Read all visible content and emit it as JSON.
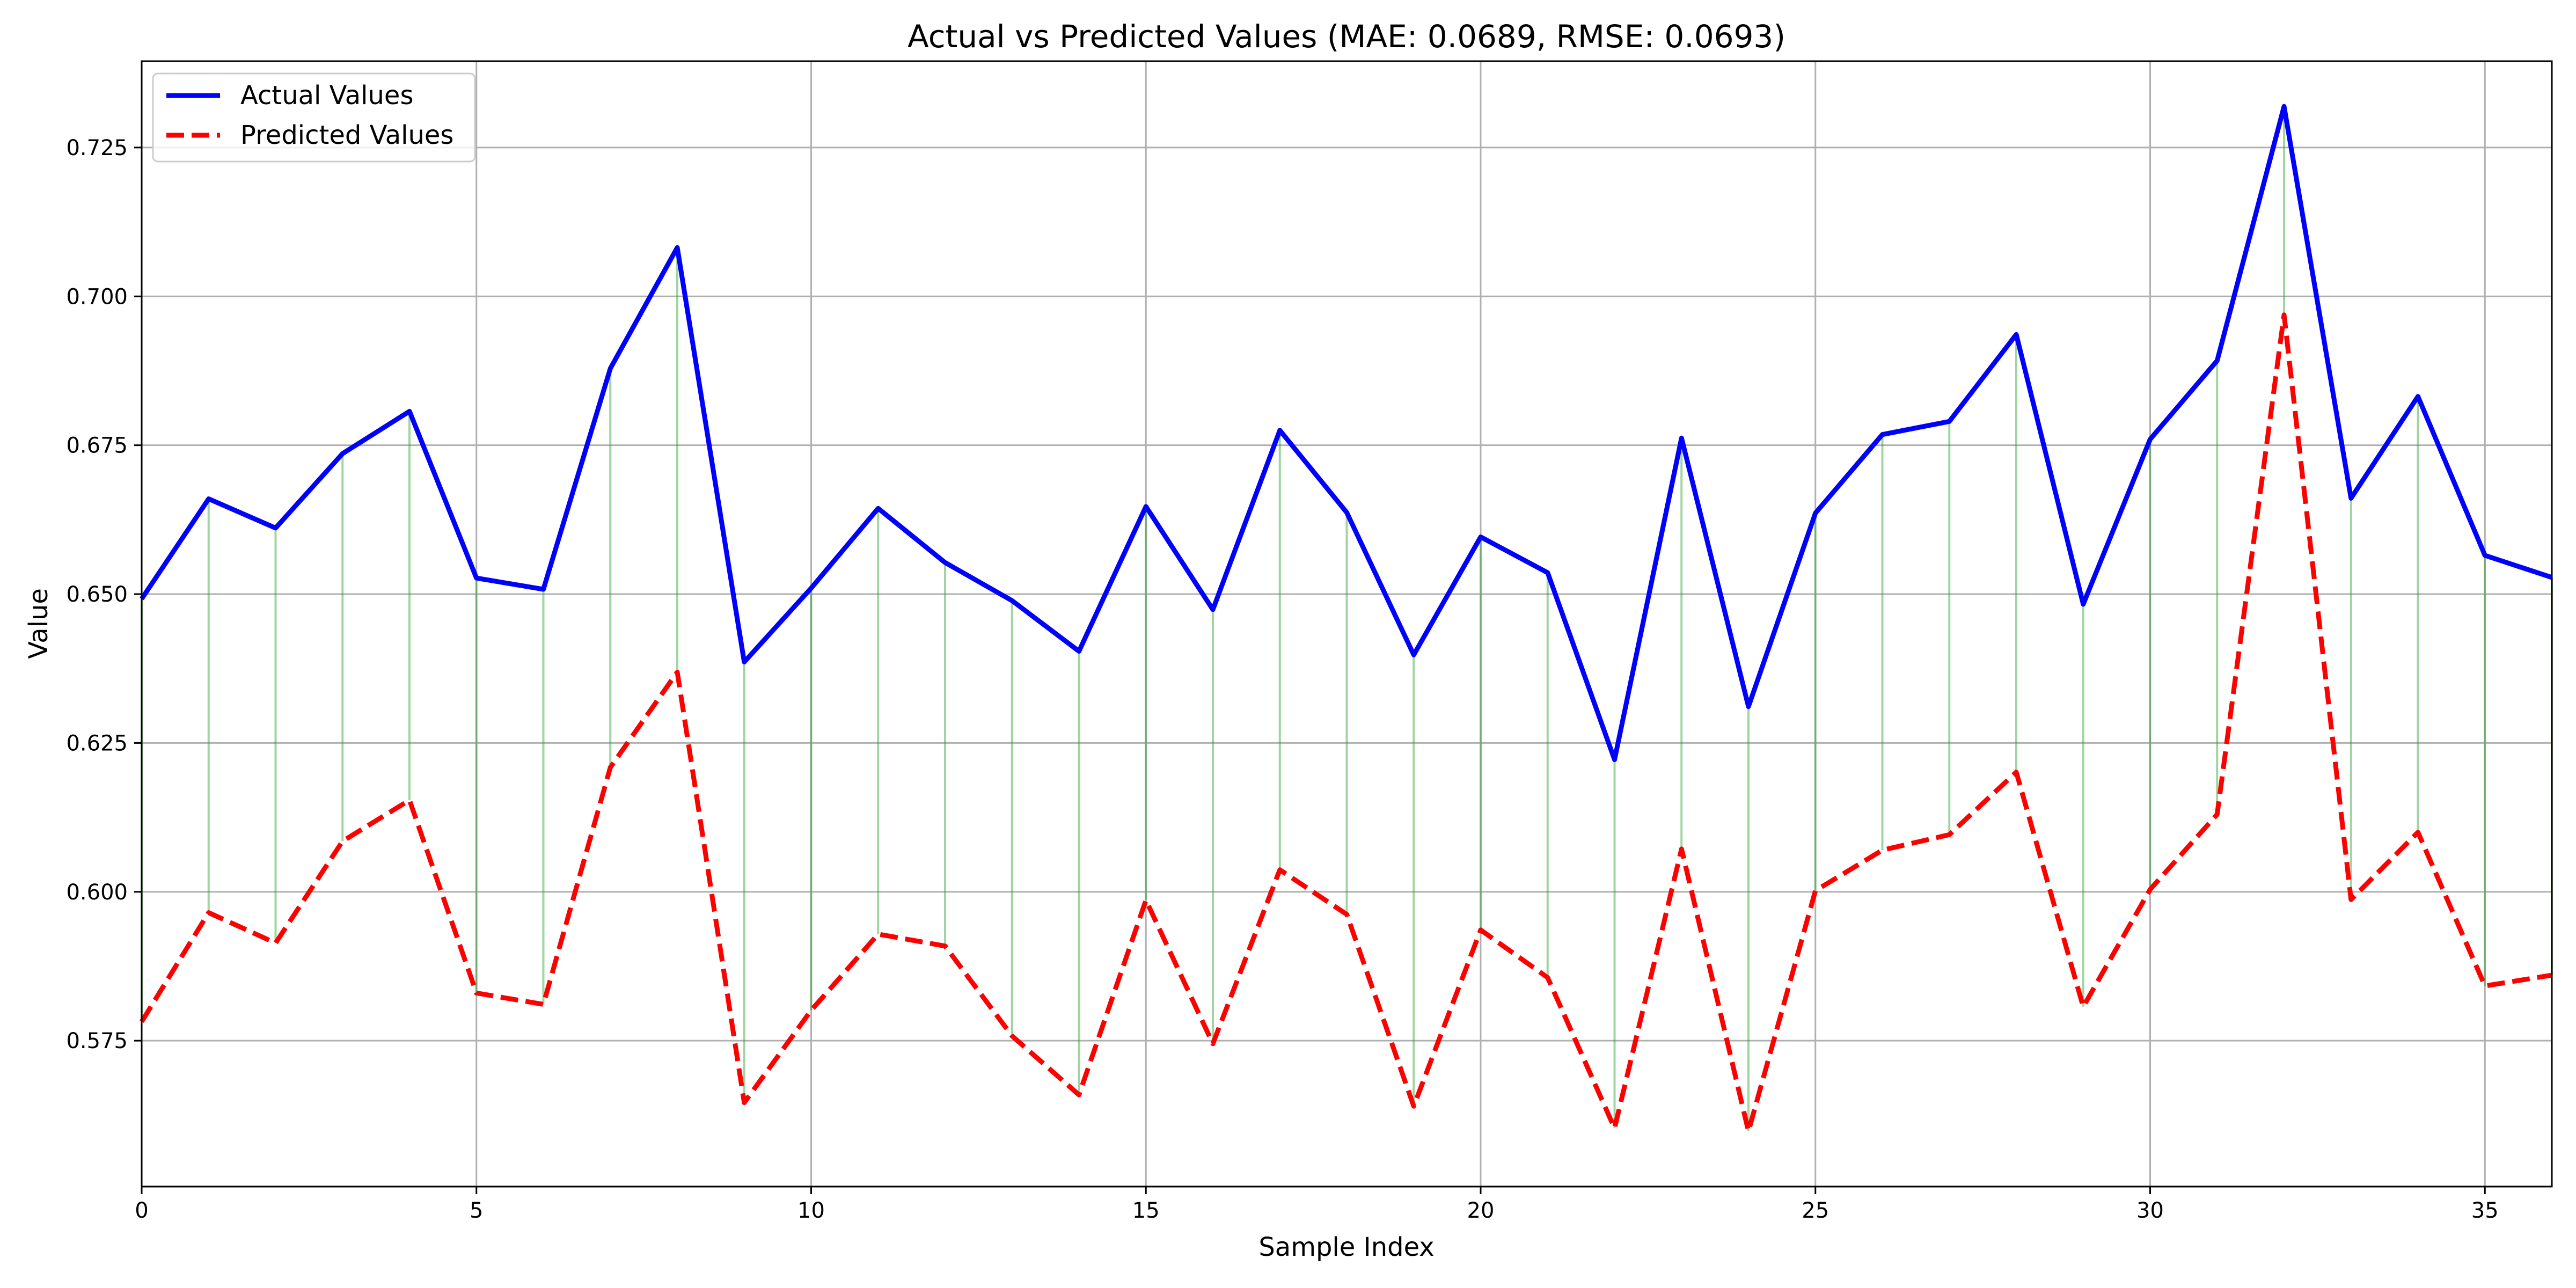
{
  "chart_data": {
    "type": "line",
    "title": "Actual vs Predicted Values (MAE: 0.0689, RMSE: 0.0693)",
    "xlabel": "Sample Index",
    "ylabel": "Value",
    "xlim": [
      0,
      36
    ],
    "ylim": [
      0.5505,
      0.7395
    ],
    "xticks": [
      0,
      5,
      10,
      15,
      20,
      25,
      30,
      35
    ],
    "xtick_labels": [
      "0",
      "5",
      "10",
      "15",
      "20",
      "25",
      "30",
      "35"
    ],
    "yticks": [
      0.575,
      0.6,
      0.625,
      0.65,
      0.675,
      0.7,
      0.725
    ],
    "ytick_labels": [
      "0.575",
      "0.600",
      "0.625",
      "0.650",
      "0.675",
      "0.700",
      "0.725"
    ],
    "grid": true,
    "legend_position": "top-left",
    "x": [
      0,
      1,
      2,
      3,
      4,
      5,
      6,
      7,
      8,
      9,
      10,
      11,
      12,
      13,
      14,
      15,
      16,
      17,
      18,
      19,
      20,
      21,
      22,
      23,
      24,
      25,
      26,
      27,
      28,
      29,
      30,
      31,
      32,
      33,
      34,
      35,
      36
    ],
    "series": [
      {
        "name": "Actual Values",
        "color": "#0000ff",
        "style": "solid",
        "values": [
          0.6492,
          0.666,
          0.6611,
          0.6736,
          0.6807,
          0.6527,
          0.6508,
          0.6879,
          0.7082,
          0.6386,
          0.651,
          0.6644,
          0.6553,
          0.6489,
          0.6404,
          0.6647,
          0.6474,
          0.6775,
          0.6637,
          0.6398,
          0.6596,
          0.6536,
          0.6222,
          0.6762,
          0.6311,
          0.6636,
          0.6768,
          0.679,
          0.6936,
          0.6483,
          0.676,
          0.6892,
          0.7319,
          0.6661,
          0.6832,
          0.6565,
          0.6528
        ]
      },
      {
        "name": "Predicted Values",
        "color": "#ff0000",
        "style": "dashed",
        "values": [
          0.5782,
          0.5965,
          0.5914,
          0.6085,
          0.6154,
          0.583,
          0.5811,
          0.6209,
          0.6369,
          0.5646,
          0.5801,
          0.5929,
          0.5909,
          0.5758,
          0.5659,
          0.5986,
          0.5745,
          0.6037,
          0.5962,
          0.564,
          0.5936,
          0.5856,
          0.5603,
          0.6072,
          0.5598,
          0.6002,
          0.607,
          0.6096,
          0.6201,
          0.5807,
          0.6004,
          0.613,
          0.6969,
          0.5987,
          0.61,
          0.5842,
          0.586
        ]
      }
    ],
    "residual_line_color": "#2ca02c"
  }
}
